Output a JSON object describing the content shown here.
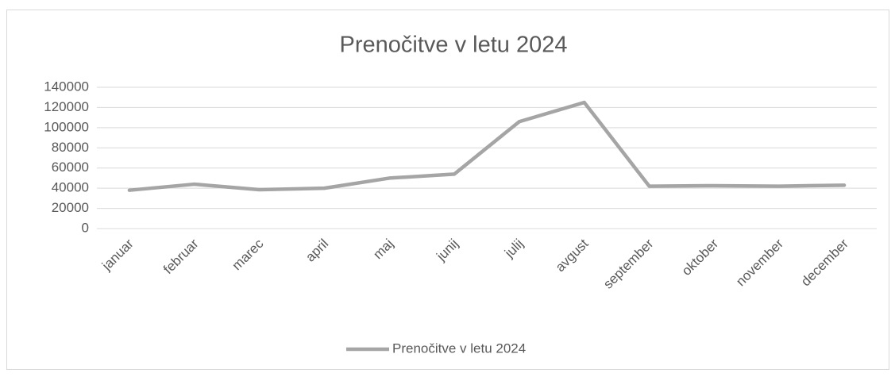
{
  "chart_data": {
    "type": "line",
    "title": "Prenočitve v letu 2024",
    "categories": [
      "januar",
      "februar",
      "marec",
      "april",
      "maj",
      "junij",
      "julij",
      "avgust",
      "september",
      "oktober",
      "november",
      "december"
    ],
    "series": [
      {
        "name": "Prenočitve v letu 2024",
        "color": "#a5a5a5",
        "values": [
          38000,
          44000,
          38500,
          40000,
          50000,
          54000,
          106000,
          125000,
          42000,
          42500,
          42000,
          43000
        ]
      }
    ],
    "ylim": [
      0,
      140000
    ],
    "yticks": [
      0,
      20000,
      40000,
      60000,
      80000,
      100000,
      120000,
      140000
    ],
    "grid": true,
    "legend": "bottom"
  }
}
